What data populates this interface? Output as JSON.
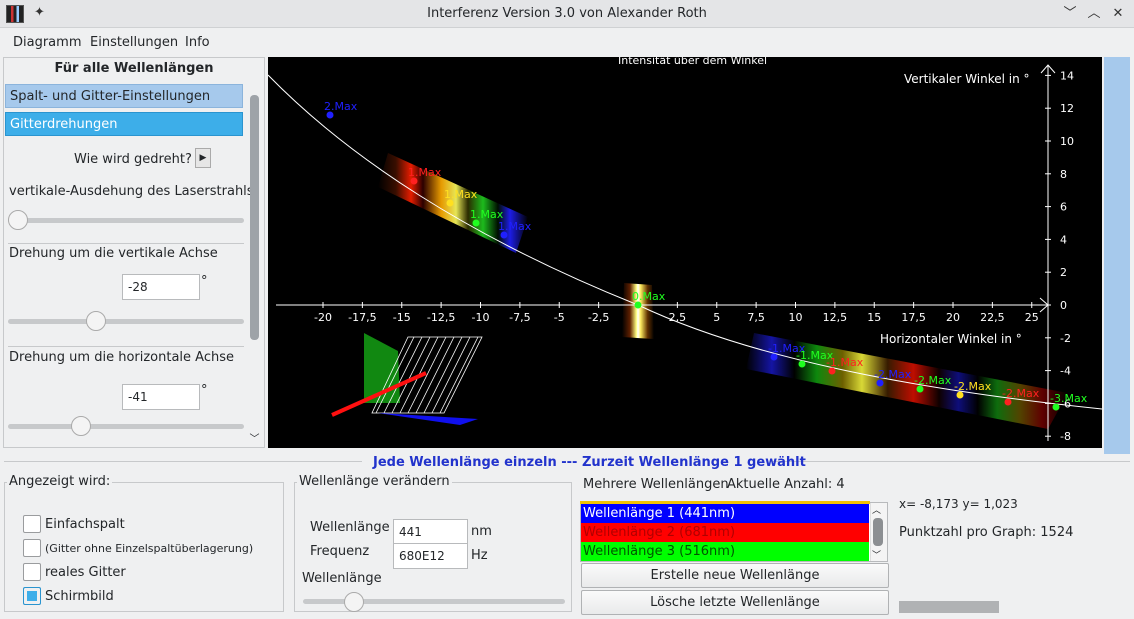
{
  "window": {
    "title": "Interferenz   Version  3.0    von  Alexander  Roth",
    "buttons": [
      "﹀",
      "︿",
      "✕"
    ]
  },
  "menu": [
    "Diagramm",
    "Einstellungen",
    "Info"
  ],
  "left_panel": {
    "heading": "Für alle Wellenlängen",
    "items": [
      {
        "label": "Spalt- und Gitter-Einstellungen"
      },
      {
        "label": "Gitterdrehungen",
        "selected": true
      }
    ],
    "how_rotated_label": "Wie wird gedreht?",
    "vertical_extent_label": "vertikale-Ausdehung des Laserstrahls",
    "vertical_extent_level": 0.0,
    "vertical_axis_label": "Drehung um die vertikale Achse",
    "vertical_axis_value": "-28",
    "vertical_axis_unit": "°",
    "vertical_axis_level": 0.36,
    "horizontal_axis_label": "Drehung um die horizontale Achse",
    "horizontal_axis_value": "-41",
    "horizontal_axis_unit": "°",
    "horizontal_axis_level": 0.29
  },
  "plot": {
    "title": "Intensität über dem Winkel",
    "vertical_axis_label": "Vertikaler Winkel in °",
    "horizontal_axis_label": "Horizontaler Winkel in °",
    "x_ticks": [
      "-20",
      "-17,5",
      "-15",
      "-12,5",
      "-10",
      "-7,5",
      "-5",
      "-2,5",
      "2,5",
      "5",
      "7,5",
      "10",
      "12,5",
      "15",
      "17,5",
      "20",
      "22,5",
      "25"
    ],
    "y_ticks": [
      "14",
      "12",
      "10",
      "8",
      "6",
      "4",
      "2",
      "0",
      "-2",
      "-4",
      "-6",
      "-8"
    ],
    "maxima_labels": [
      "2.Max",
      "1.Max",
      "1.Max",
      "1.Max",
      "1.Max",
      "0.Max",
      "-1.Max",
      "-1.Max",
      "-1.Max",
      "-2.Max",
      "-2.Max",
      "-2.Max",
      "-2.Max",
      "-3.Max"
    ],
    "colors": {
      "blue": "#2020ff",
      "red": "#ff2020",
      "yellow": "#ffe020",
      "green": "#20ff20"
    }
  },
  "status_line": "Jede Wellenlänge einzeln  --- Zurzeit Wellenlänge 1 gewählt",
  "angezeigt": {
    "title": "Angezeigt wird:",
    "options": [
      {
        "label": "Einfachspalt",
        "checked": false
      },
      {
        "label": "(Gitter ohne Einzelspaltüberlagerung)",
        "checked": false
      },
      {
        "label": "reales Gitter",
        "checked": false
      },
      {
        "label": "Schirmbild",
        "checked": true
      }
    ]
  },
  "wellenlaenge": {
    "title": "Wellenlänge verändern",
    "wl_label": "Wellenlänge",
    "wl_value": "441",
    "wl_unit": "nm",
    "freq_label": "Frequenz",
    "freq_value": "680E12",
    "freq_unit": "Hz",
    "slider_label": "Wellenlänge",
    "slider_level": 0.17
  },
  "mehrere": {
    "title": "Mehrere Wellenlängen",
    "count_text": "Aktuelle Anzahl: 4",
    "rows": [
      {
        "label": "Wellenlänge 1     (441nm)",
        "color": "#0000ff",
        "text_color": "#ffffff"
      },
      {
        "label": "Wellenlänge 2     (681nm)",
        "color": "#ff0000",
        "text_color": "#b00000"
      },
      {
        "label": "Wellenlänge 3     (516nm)",
        "color": "#00ff00",
        "text_color": "#005500"
      }
    ],
    "create_button": "Erstelle neue Wellenlänge",
    "delete_button": "Lösche letzte Wellenlänge"
  },
  "info": {
    "coords": "x= -8,173  y= 1,023",
    "points": "Punktzahl pro Graph: 1524"
  }
}
